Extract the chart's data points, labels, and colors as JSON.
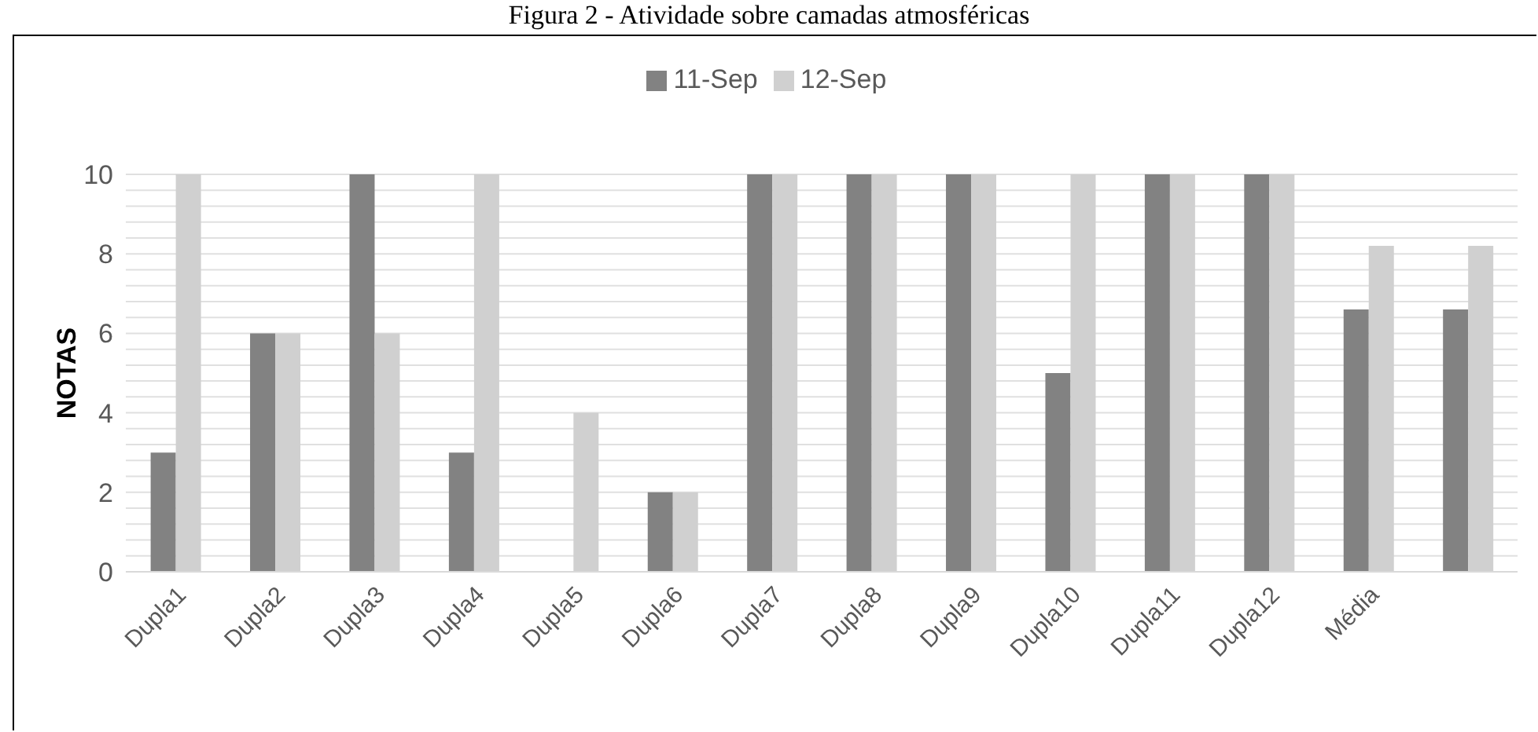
{
  "chart_data": {
    "type": "bar",
    "title": "Figura 2 - Atividade sobre camadas atmosféricas",
    "ylabel": "NOTAS",
    "categories": [
      "Dupla1",
      "Dupla2",
      "Dupla3",
      "Dupla4",
      "Dupla5",
      "Dupla6",
      "Dupla7",
      "Dupla8",
      "Dupla9",
      "Dupla10",
      "Dupla11",
      "Dupla12",
      "Média",
      null
    ],
    "series": [
      {
        "name": "11-Sep",
        "color": "#828282",
        "values": [
          3,
          6,
          10,
          3,
          0,
          2,
          10,
          10,
          10,
          5,
          10,
          10,
          6.6,
          6.6
        ]
      },
      {
        "name": "12-Sep",
        "color": "#d0d0d0",
        "values": [
          10,
          6,
          6,
          10,
          4,
          2,
          10,
          10,
          10,
          10,
          10,
          10,
          8.2,
          8.2
        ]
      }
    ],
    "ylim": [
      0,
      10
    ],
    "yticks": [
      0,
      {
        "value": 0.4,
        "label": null
      },
      {
        "value": 0.8,
        "label": null
      },
      {
        "value": 1.2,
        "label": null
      },
      {
        "value": 1.6,
        "label": null
      },
      2,
      {
        "value": 2.4,
        "label": null
      },
      {
        "value": 2.8,
        "label": null
      },
      {
        "value": 3.2,
        "label": null
      },
      {
        "value": 3.6,
        "label": null
      },
      4,
      {
        "value": 4.4,
        "label": null
      },
      {
        "value": 4.8,
        "label": null
      },
      {
        "value": 5.2,
        "label": null
      },
      {
        "value": 5.6,
        "label": null
      },
      6,
      {
        "value": 6.4,
        "label": null
      },
      {
        "value": 6.8,
        "label": null
      },
      {
        "value": 7.2,
        "label": null
      },
      {
        "value": 7.6,
        "label": null
      },
      8,
      {
        "value": 8.4,
        "label": null
      },
      {
        "value": 8.8,
        "label": null
      },
      {
        "value": 9.2,
        "label": null
      },
      {
        "value": 9.6,
        "label": null
      },
      10
    ],
    "grid": "y",
    "legend": "top"
  }
}
